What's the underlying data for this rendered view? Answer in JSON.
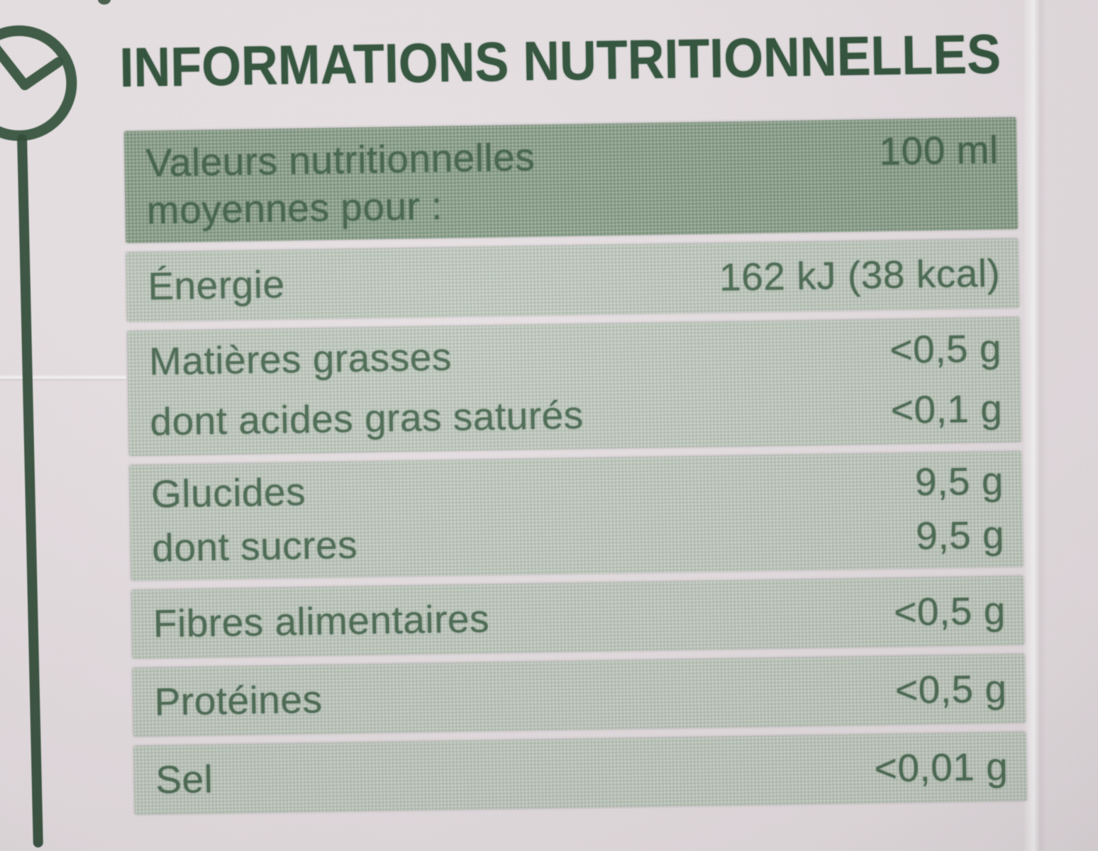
{
  "label": {
    "title": "INFORMATIONS NUTRITIONNELLES",
    "table": {
      "rows": [
        {
          "header": true,
          "lines": [
            {
              "label": "Valeurs nutritionnelles",
              "value": "100 ml"
            },
            {
              "label": "moyennes pour :",
              "value": ""
            }
          ]
        },
        {
          "lines": [
            {
              "label": "Énergie",
              "value": "162 kJ (38 kcal)"
            }
          ]
        },
        {
          "lines": [
            {
              "label": "Matières grasses",
              "value": "<0,5 g"
            },
            {
              "label": "dont acides gras saturés",
              "value": "<0,1 g"
            }
          ]
        },
        {
          "lines": [
            {
              "label": "Glucides",
              "value": "9,5 g"
            },
            {
              "label": "dont sucres",
              "value": "9,5 g"
            }
          ]
        },
        {
          "lines": [
            {
              "label": "Fibres alimentaires",
              "value": "<0,5 g"
            }
          ]
        },
        {
          "lines": [
            {
              "label": "Protéines",
              "value": "<0,5 g"
            }
          ]
        },
        {
          "lines": [
            {
              "label": "Sel",
              "value": "<0,01 g"
            }
          ]
        }
      ]
    },
    "icons": [
      {
        "name": "clock-zigzag-stem-graphic"
      }
    ],
    "colors": {
      "header_band": "#879d87",
      "row_band": "#bcc6ba",
      "text_green": "#47684f",
      "title_green": "#2b4f36",
      "graphic_green": "#2e4f37",
      "background": "#e7e0e3"
    }
  }
}
